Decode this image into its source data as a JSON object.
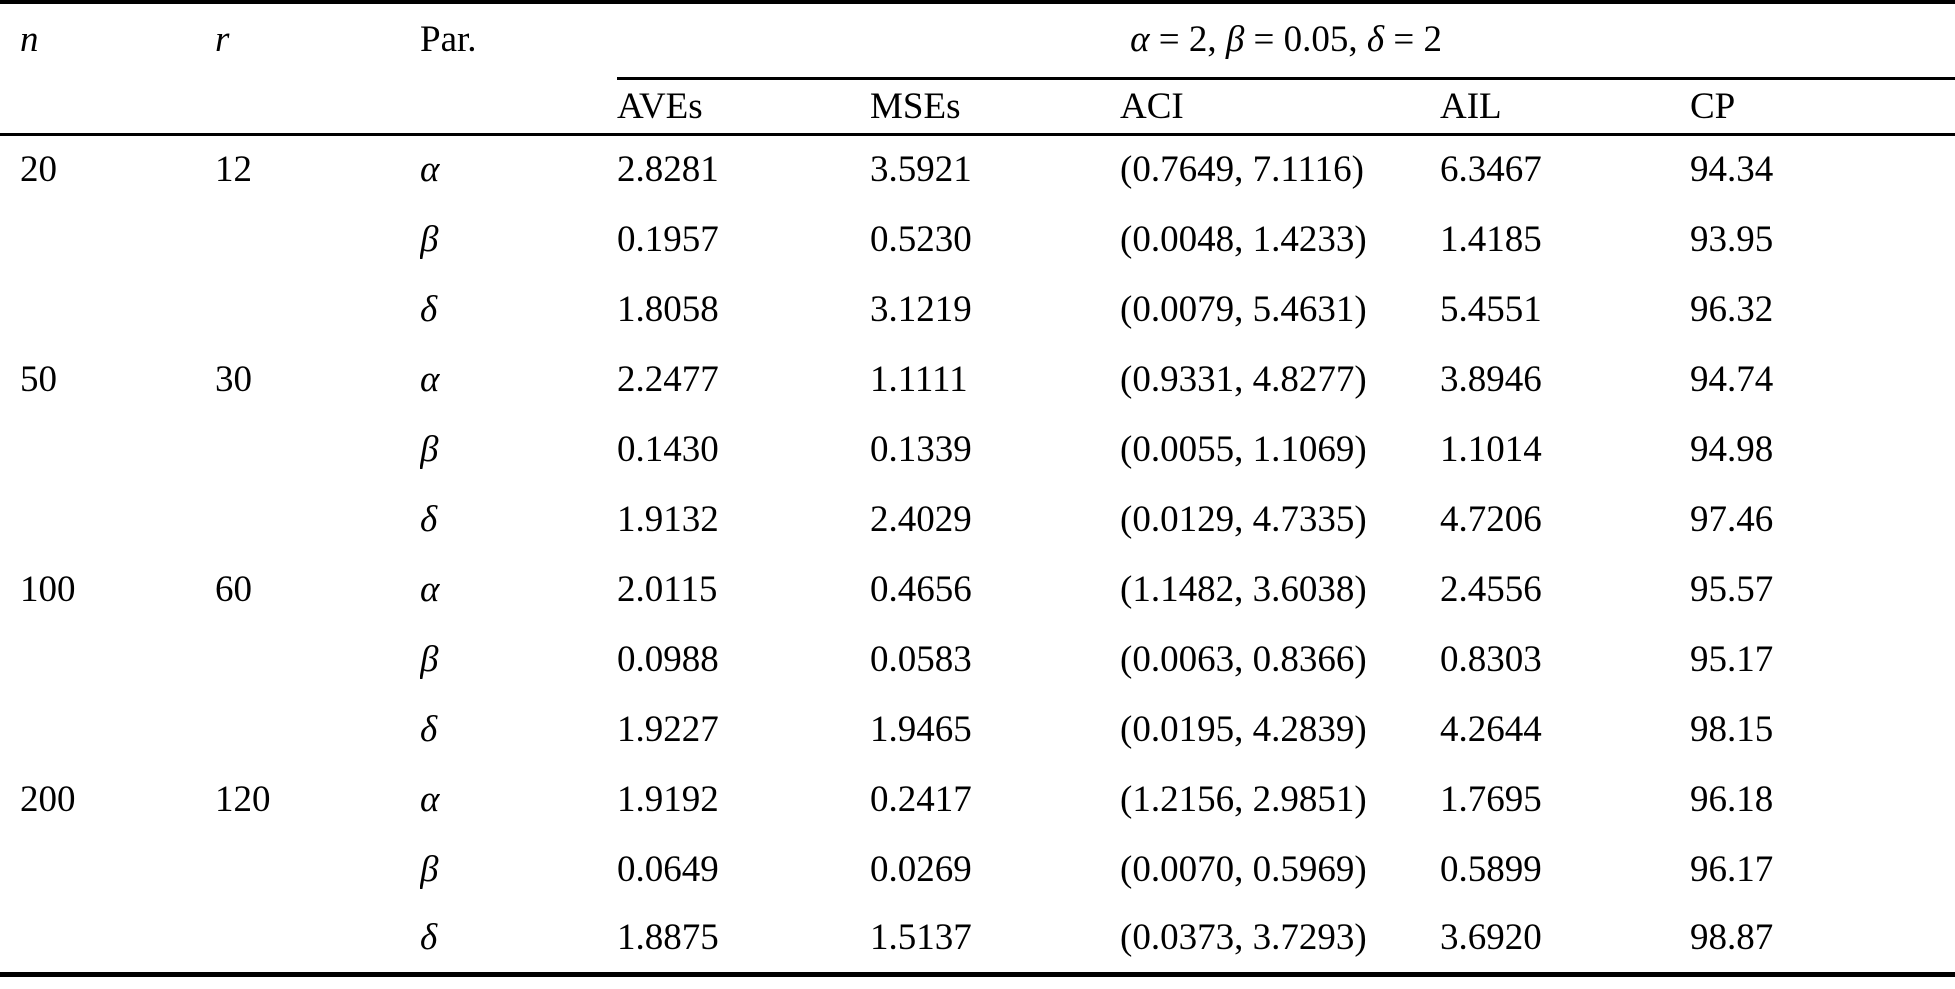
{
  "page": {
    "background": "#ffffff",
    "text_color": "#000000",
    "rule_color": "#000000"
  },
  "table": {
    "headers": {
      "n": "n",
      "r": "r",
      "par": "Par.",
      "group": [
        "α",
        " = 2, ",
        "β",
        " = 0.05, ",
        "δ",
        " = 2"
      ],
      "aves": "AVEs",
      "mses": "MSEs",
      "aci": "ACI",
      "ail": "AIL",
      "cp": "CP"
    },
    "rows": [
      {
        "n": "20",
        "r": "12",
        "par": "α",
        "aves": "2.8281",
        "mses": "3.5921",
        "aci": "(0.7649, 7.1116)",
        "ail": "6.3467",
        "cp": "94.34"
      },
      {
        "n": "",
        "r": "",
        "par": "β",
        "aves": "0.1957",
        "mses": "0.5230",
        "aci": "(0.0048, 1.4233)",
        "ail": "1.4185",
        "cp": "93.95"
      },
      {
        "n": "",
        "r": "",
        "par": "δ",
        "aves": "1.8058",
        "mses": "3.1219",
        "aci": "(0.0079, 5.4631)",
        "ail": "5.4551",
        "cp": "96.32"
      },
      {
        "n": "50",
        "r": "30",
        "par": "α",
        "aves": "2.2477",
        "mses": "1.1111",
        "aci": "(0.9331, 4.8277)",
        "ail": "3.8946",
        "cp": "94.74"
      },
      {
        "n": "",
        "r": "",
        "par": "β",
        "aves": "0.1430",
        "mses": "0.1339",
        "aci": "(0.0055, 1.1069)",
        "ail": "1.1014",
        "cp": "94.98"
      },
      {
        "n": "",
        "r": "",
        "par": "δ",
        "aves": "1.9132",
        "mses": "2.4029",
        "aci": "(0.0129, 4.7335)",
        "ail": "4.7206",
        "cp": "97.46"
      },
      {
        "n": "100",
        "r": "60",
        "par": "α",
        "aves": "2.0115",
        "mses": "0.4656",
        "aci": "(1.1482, 3.6038)",
        "ail": "2.4556",
        "cp": "95.57"
      },
      {
        "n": "",
        "r": "",
        "par": "β",
        "aves": "0.0988",
        "mses": "0.0583",
        "aci": "(0.0063, 0.8366)",
        "ail": "0.8303",
        "cp": "95.17"
      },
      {
        "n": "",
        "r": "",
        "par": "δ",
        "aves": "1.9227",
        "mses": "1.9465",
        "aci": "(0.0195, 4.2839)",
        "ail": "4.2644",
        "cp": "98.15"
      },
      {
        "n": "200",
        "r": "120",
        "par": "α",
        "aves": "1.9192",
        "mses": "0.2417",
        "aci": "(1.2156, 2.9851)",
        "ail": "1.7695",
        "cp": "96.18"
      },
      {
        "n": "",
        "r": "",
        "par": "β",
        "aves": "0.0649",
        "mses": "0.0269",
        "aci": "(0.0070, 0.5969)",
        "ail": "0.5899",
        "cp": "96.17"
      },
      {
        "n": "",
        "r": "",
        "par": "δ",
        "aves": "1.8875",
        "mses": "1.5137",
        "aci": "(0.0373, 3.7293)",
        "ail": "3.6920",
        "cp": "98.87"
      }
    ]
  }
}
